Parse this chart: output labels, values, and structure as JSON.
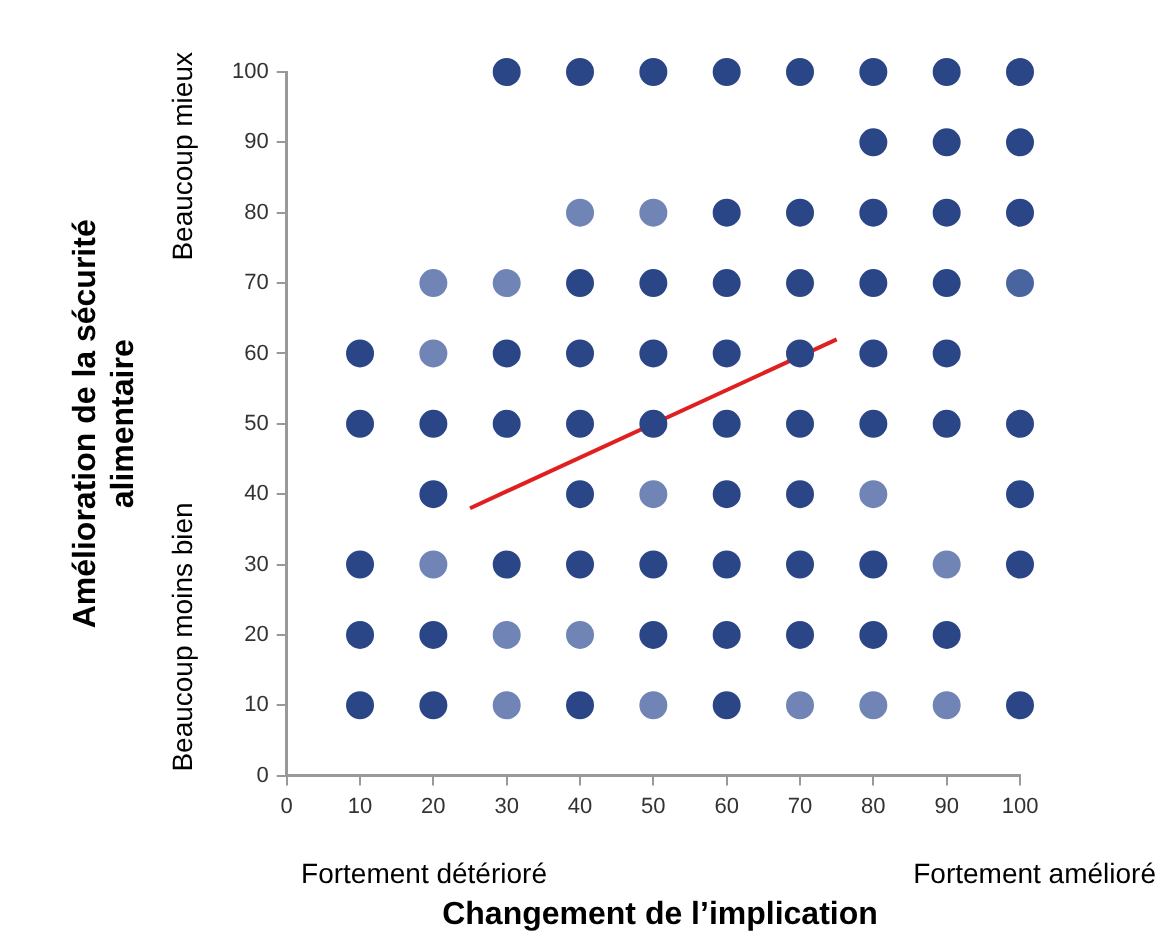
{
  "chart_data": {
    "type": "scatter",
    "xlabel": "Changement de l’implication",
    "ylabel": "Amélioration de la sécurité alimentaire",
    "xlim": [
      0,
      100
    ],
    "ylim": [
      0,
      100
    ],
    "xticks": [
      0,
      10,
      20,
      30,
      40,
      50,
      60,
      70,
      80,
      90,
      100
    ],
    "yticks": [
      0,
      10,
      20,
      30,
      40,
      50,
      60,
      70,
      80,
      90,
      100
    ],
    "grid": false,
    "legend": false,
    "marker": "circle",
    "annotations": [
      "Beaucoup mieux",
      "Beaucoup moins bien",
      "Fortement détérioré",
      "Fortement amélioré"
    ],
    "series": [
      {
        "x": [
          30,
          40,
          50,
          60,
          70,
          80,
          90,
          100,
          80,
          90,
          100,
          40,
          50,
          60,
          70,
          80,
          90,
          100,
          20,
          30,
          40,
          50,
          60,
          70,
          80,
          90,
          100,
          10,
          20,
          30,
          40,
          50,
          60,
          70,
          80,
          90,
          10,
          20,
          30,
          40,
          50,
          60,
          70,
          80,
          90,
          100,
          20,
          40,
          50,
          60,
          70,
          80,
          100,
          10,
          20,
          30,
          40,
          50,
          60,
          70,
          80,
          90,
          100,
          10,
          20,
          30,
          40,
          50,
          60,
          70,
          80,
          90,
          10,
          20,
          30,
          40,
          50,
          60,
          70,
          80,
          90,
          100
        ],
        "values": [
          100,
          100,
          100,
          100,
          100,
          100,
          100,
          100,
          90,
          90,
          90,
          80,
          80,
          80,
          80,
          80,
          80,
          80,
          70,
          70,
          70,
          70,
          70,
          70,
          70,
          70,
          70,
          60,
          60,
          60,
          60,
          60,
          60,
          60,
          60,
          60,
          50,
          50,
          50,
          50,
          50,
          50,
          50,
          50,
          50,
          50,
          40,
          40,
          40,
          40,
          40,
          40,
          40,
          30,
          30,
          30,
          30,
          30,
          30,
          30,
          30,
          30,
          30,
          20,
          20,
          20,
          20,
          20,
          20,
          20,
          20,
          20,
          10,
          10,
          10,
          10,
          10,
          10,
          10,
          10,
          10,
          10
        ],
        "colors": [
          "#2b4686",
          "#2b4686",
          "#2b4686",
          "#2b4686",
          "#2b4686",
          "#2b4686",
          "#2b4686",
          "#2b4686",
          "#2b4686",
          "#2b4686",
          "#2b4686",
          "#7084b6",
          "#7084b6",
          "#2b4686",
          "#2b4686",
          "#2b4686",
          "#2b4686",
          "#2b4686",
          "#7084b6",
          "#7084b6",
          "#2b4686",
          "#2b4686",
          "#2b4686",
          "#2b4686",
          "#2b4686",
          "#2b4686",
          "#4a64a0",
          "#2b4686",
          "#7084b6",
          "#2b4686",
          "#2b4686",
          "#2b4686",
          "#2b4686",
          "#2b4686",
          "#2b4686",
          "#2b4686",
          "#2b4686",
          "#2b4686",
          "#2b4686",
          "#2b4686",
          "#2b4686",
          "#2b4686",
          "#2b4686",
          "#2b4686",
          "#2b4686",
          "#2b4686",
          "#2b4686",
          "#2b4686",
          "#7084b6",
          "#2b4686",
          "#2b4686",
          "#7084b6",
          "#2b4686",
          "#2b4686",
          "#7084b6",
          "#2b4686",
          "#2b4686",
          "#2b4686",
          "#2b4686",
          "#2b4686",
          "#2b4686",
          "#7084b6",
          "#2b4686",
          "#2b4686",
          "#2b4686",
          "#7084b6",
          "#7084b6",
          "#2b4686",
          "#2b4686",
          "#2b4686",
          "#2b4686",
          "#2b4686",
          "#2b4686",
          "#2b4686",
          "#7084b6",
          "#2b4686",
          "#7084b6",
          "#2b4686",
          "#7084b6",
          "#7084b6",
          "#7084b6",
          "#2b4686"
        ]
      },
      {
        "type": "line",
        "x": [
          25,
          75
        ],
        "values": [
          38,
          62
        ],
        "color": "#e02020",
        "marker": "none"
      }
    ]
  }
}
